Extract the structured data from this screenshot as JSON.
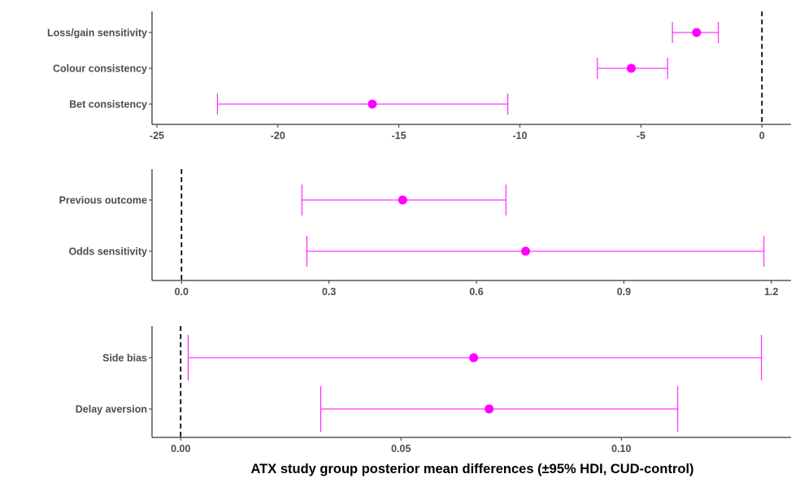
{
  "chart_data": [
    {
      "type": "errorbar",
      "xlim": [
        -25.2,
        1.2
      ],
      "ticks": [
        -25,
        -20,
        -15,
        -10,
        -5,
        0
      ],
      "tick_labels": [
        "-25",
        "-20",
        "-15",
        "-10",
        "-5",
        "0"
      ],
      "reference_line": 0,
      "categories": [
        "Loss/gain sensitivity",
        "Colour consistency",
        "Bet consistency"
      ],
      "means": [
        -2.7,
        -5.4,
        -16.1
      ],
      "lower": [
        -3.7,
        -6.8,
        -22.5
      ],
      "upper": [
        -1.8,
        -3.9,
        -10.5
      ]
    },
    {
      "type": "errorbar",
      "xlim": [
        -0.06,
        1.24
      ],
      "ticks": [
        0.0,
        0.3,
        0.6,
        0.9,
        1.2
      ],
      "tick_labels": [
        "0.0",
        "0.3",
        "0.6",
        "0.9",
        "1.2"
      ],
      "reference_line": 0,
      "categories": [
        "Previous outcome",
        "Odds sensitivity"
      ],
      "means": [
        0.45,
        0.7
      ],
      "lower": [
        0.245,
        0.255
      ],
      "upper": [
        0.66,
        1.185
      ]
    },
    {
      "type": "errorbar",
      "xlim": [
        -0.0065,
        0.1385
      ],
      "ticks": [
        0.0,
        0.05,
        0.1
      ],
      "tick_labels": [
        "0.00",
        "0.05",
        "0.10"
      ],
      "reference_line": 0,
      "categories": [
        "Side bias",
        "Delay aversion"
      ],
      "means": [
        0.0665,
        0.07
      ],
      "lower": [
        0.0017,
        0.0318
      ],
      "upper": [
        0.1318,
        0.1128
      ]
    }
  ],
  "xlabel": "ATX study group posterior mean differences (±95% HDI, CUD-control)",
  "colors": {
    "series": "#ff00ff",
    "axis": "#000000",
    "text": "#4d4d4d"
  }
}
